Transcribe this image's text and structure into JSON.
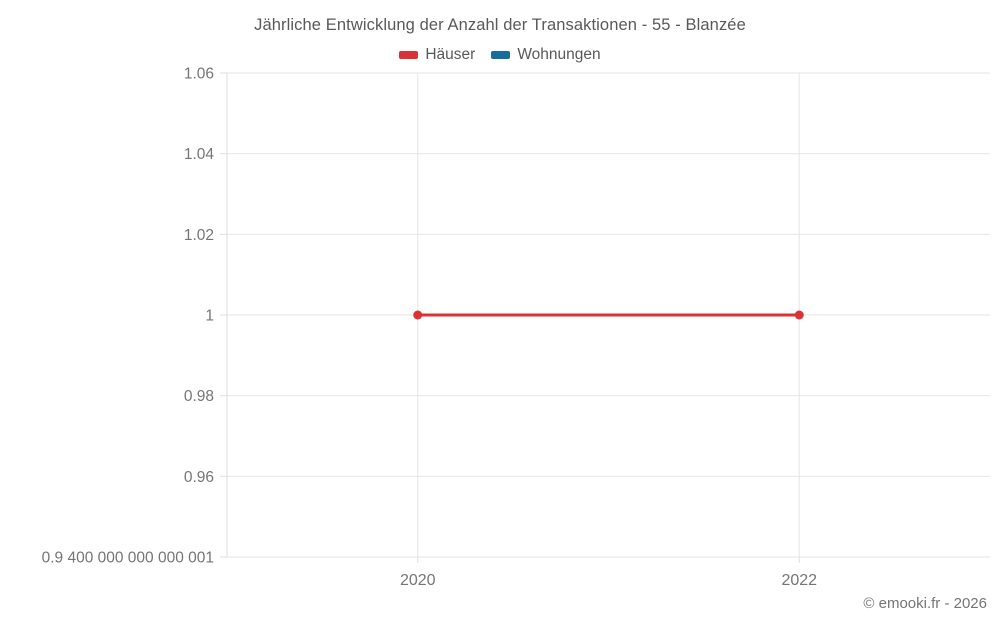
{
  "chart_data": {
    "type": "line",
    "title": "Jährliche Entwicklung der Anzahl der Transaktionen - 55 - Blanzée",
    "xlabel": "",
    "ylabel": "",
    "xlim": [
      2019,
      2023
    ],
    "ylim": [
      0.94,
      1.06
    ],
    "grid": true,
    "legend_position": "top",
    "x_ticks": [
      {
        "value": 2020,
        "label": "2020"
      },
      {
        "value": 2022,
        "label": "2022"
      }
    ],
    "y_ticks": [
      {
        "value": 1.06,
        "label": "1.06"
      },
      {
        "value": 1.04,
        "label": "1.04"
      },
      {
        "value": 1.02,
        "label": "1.02"
      },
      {
        "value": 1.0,
        "label": "1"
      },
      {
        "value": 0.98,
        "label": "0.98"
      },
      {
        "value": 0.96,
        "label": "0.96"
      },
      {
        "value": 0.94,
        "label": "0.9 400 000 000 000 001"
      }
    ],
    "series": [
      {
        "name": "Häuser",
        "color": "#db3236",
        "x": [
          2020,
          2022
        ],
        "values": [
          1,
          1
        ]
      },
      {
        "name": "Wohnungen",
        "color": "#176d9c",
        "x": [],
        "values": []
      }
    ],
    "colors": {
      "gridline": "#e6e6e6",
      "axis_line": "#dedede",
      "tick_label": "#757575"
    }
  },
  "footer": {
    "copyright": "© emooki.fr - 2026"
  }
}
